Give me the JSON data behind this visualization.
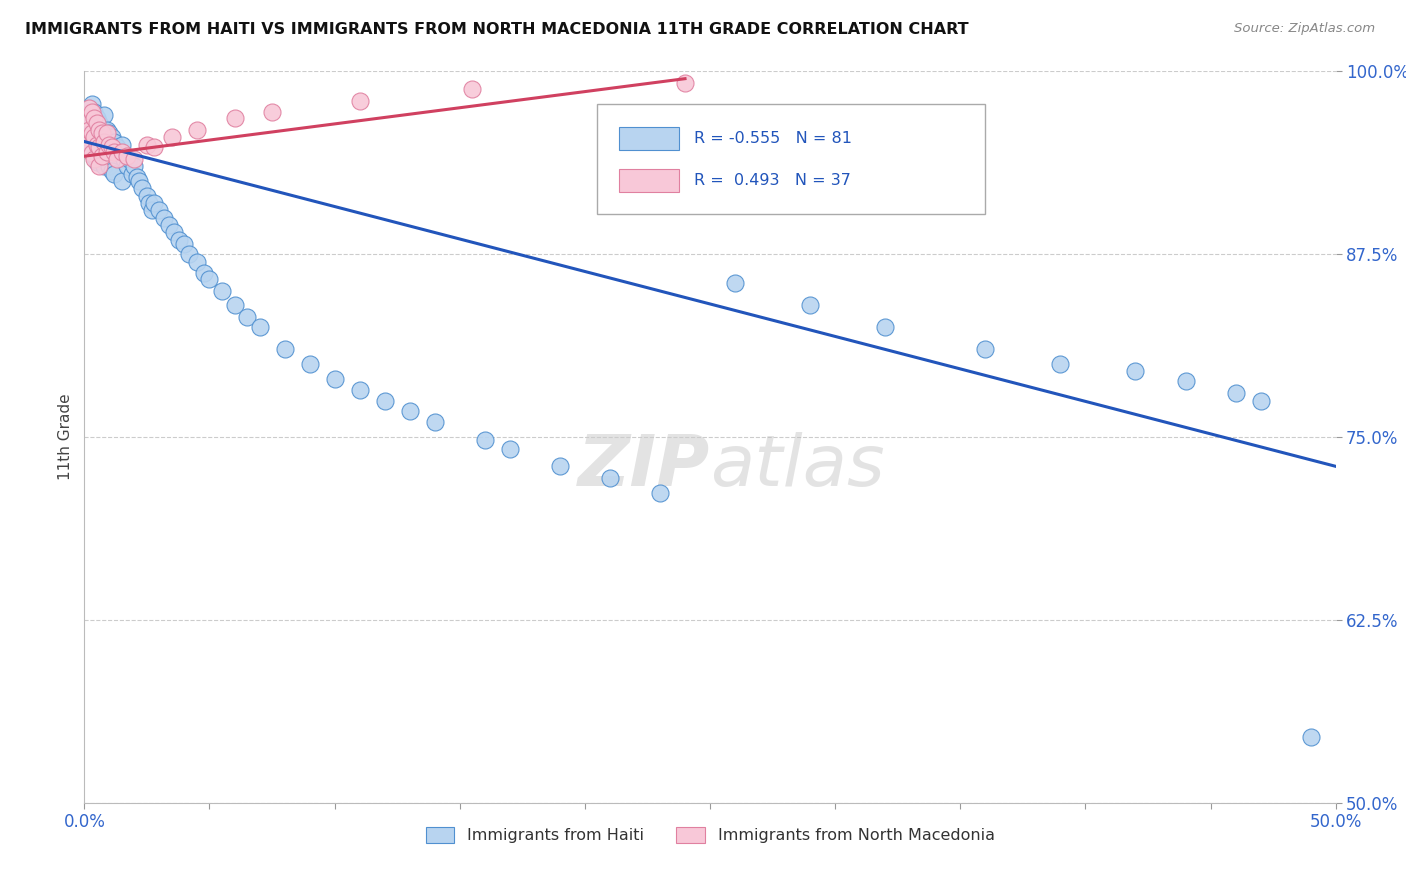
{
  "title": "IMMIGRANTS FROM HAITI VS IMMIGRANTS FROM NORTH MACEDONIA 11TH GRADE CORRELATION CHART",
  "source": "Source: ZipAtlas.com",
  "ylabel": "11th Grade",
  "legend_label1": "Immigrants from Haiti",
  "legend_label2": "Immigrants from North Macedonia",
  "R1": -0.555,
  "N1": 81,
  "R2": 0.493,
  "N2": 37,
  "color_haiti": "#b8d4f0",
  "color_haiti_edge": "#5090d0",
  "color_haiti_line": "#2255bb",
  "color_mac": "#f8c8d8",
  "color_mac_edge": "#e080a0",
  "color_mac_line": "#d04060",
  "xlim": [
    0.0,
    0.5
  ],
  "ylim": [
    0.5,
    1.0
  ],
  "xticks": [
    0.0,
    0.05,
    0.1,
    0.15,
    0.2,
    0.25,
    0.3,
    0.35,
    0.4,
    0.45,
    0.5
  ],
  "yticks": [
    0.5,
    0.625,
    0.75,
    0.875,
    1.0
  ],
  "yticklabels": [
    "50.0%",
    "62.5%",
    "75.0%",
    "87.5%",
    "100.0%"
  ],
  "haiti_x": [
    0.001,
    0.001,
    0.002,
    0.002,
    0.002,
    0.003,
    0.003,
    0.003,
    0.004,
    0.004,
    0.004,
    0.005,
    0.005,
    0.005,
    0.006,
    0.006,
    0.007,
    0.007,
    0.008,
    0.008,
    0.008,
    0.009,
    0.009,
    0.01,
    0.01,
    0.011,
    0.011,
    0.012,
    0.012,
    0.013,
    0.014,
    0.015,
    0.015,
    0.016,
    0.017,
    0.018,
    0.019,
    0.02,
    0.021,
    0.022,
    0.023,
    0.025,
    0.026,
    0.027,
    0.028,
    0.03,
    0.032,
    0.034,
    0.036,
    0.038,
    0.04,
    0.042,
    0.045,
    0.048,
    0.05,
    0.055,
    0.06,
    0.065,
    0.07,
    0.08,
    0.09,
    0.1,
    0.11,
    0.12,
    0.13,
    0.14,
    0.16,
    0.17,
    0.19,
    0.21,
    0.23,
    0.26,
    0.29,
    0.32,
    0.36,
    0.39,
    0.42,
    0.44,
    0.46,
    0.47,
    0.49
  ],
  "haiti_y": [
    0.97,
    0.955,
    0.975,
    0.965,
    0.95,
    0.978,
    0.96,
    0.945,
    0.972,
    0.958,
    0.942,
    0.968,
    0.953,
    0.938,
    0.965,
    0.948,
    0.962,
    0.944,
    0.97,
    0.955,
    0.935,
    0.96,
    0.94,
    0.958,
    0.935,
    0.955,
    0.932,
    0.952,
    0.93,
    0.948,
    0.945,
    0.95,
    0.925,
    0.94,
    0.935,
    0.94,
    0.93,
    0.935,
    0.928,
    0.925,
    0.92,
    0.915,
    0.91,
    0.905,
    0.91,
    0.905,
    0.9,
    0.895,
    0.89,
    0.885,
    0.882,
    0.875,
    0.87,
    0.862,
    0.858,
    0.85,
    0.84,
    0.832,
    0.825,
    0.81,
    0.8,
    0.79,
    0.782,
    0.775,
    0.768,
    0.76,
    0.748,
    0.742,
    0.73,
    0.722,
    0.712,
    0.855,
    0.84,
    0.825,
    0.81,
    0.8,
    0.795,
    0.788,
    0.78,
    0.775,
    0.545
  ],
  "mac_x": [
    0.001,
    0.001,
    0.002,
    0.002,
    0.002,
    0.003,
    0.003,
    0.003,
    0.004,
    0.004,
    0.004,
    0.005,
    0.005,
    0.006,
    0.006,
    0.006,
    0.007,
    0.007,
    0.008,
    0.009,
    0.009,
    0.01,
    0.011,
    0.012,
    0.013,
    0.015,
    0.017,
    0.02,
    0.025,
    0.028,
    0.035,
    0.045,
    0.06,
    0.075,
    0.11,
    0.155,
    0.24
  ],
  "mac_y": [
    0.968,
    0.955,
    0.975,
    0.96,
    0.948,
    0.972,
    0.958,
    0.944,
    0.968,
    0.955,
    0.94,
    0.965,
    0.95,
    0.96,
    0.948,
    0.935,
    0.958,
    0.942,
    0.952,
    0.958,
    0.945,
    0.95,
    0.948,
    0.945,
    0.94,
    0.945,
    0.942,
    0.94,
    0.95,
    0.948,
    0.955,
    0.96,
    0.968,
    0.972,
    0.98,
    0.988,
    0.992
  ],
  "trend_haiti_x0": 0.0,
  "trend_haiti_x1": 0.5,
  "trend_haiti_y0": 0.952,
  "trend_haiti_y1": 0.73,
  "trend_mac_x0": 0.0,
  "trend_mac_x1": 0.24,
  "trend_mac_y0": 0.942,
  "trend_mac_y1": 0.995,
  "watermark_zip": "ZIP",
  "watermark_atlas": "atlas",
  "background_color": "#ffffff",
  "grid_color": "#cccccc"
}
